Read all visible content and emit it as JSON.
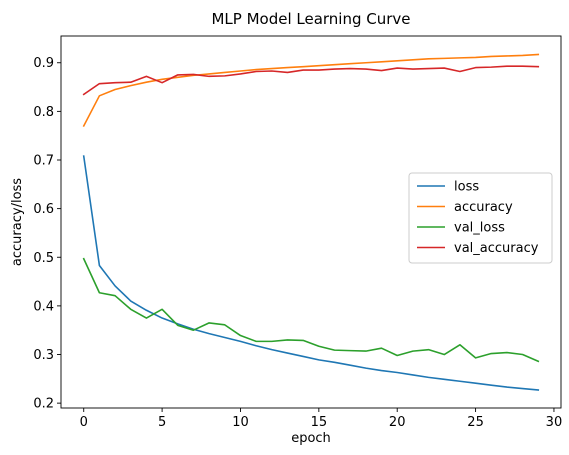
{
  "chart_data": {
    "type": "line",
    "title": "MLP Model Learning Curve",
    "xlabel": "epoch",
    "ylabel": "accuracy/loss",
    "xlim": [
      -1.45,
      30.45
    ],
    "ylim": [
      0.19,
      0.955
    ],
    "xticks": [
      0,
      5,
      10,
      15,
      20,
      25,
      30
    ],
    "yticks": [
      0.2,
      0.3,
      0.4,
      0.5,
      0.6,
      0.7,
      0.8,
      0.9
    ],
    "grid": false,
    "legend_placement": "center-right",
    "x": [
      0,
      1,
      2,
      3,
      4,
      5,
      6,
      7,
      8,
      9,
      10,
      11,
      12,
      13,
      14,
      15,
      16,
      17,
      18,
      19,
      20,
      21,
      22,
      23,
      24,
      25,
      26,
      27,
      28,
      29
    ],
    "series": [
      {
        "name": "loss",
        "color": "#1f77b4",
        "values": [
          0.708,
          0.483,
          0.441,
          0.41,
          0.391,
          0.375,
          0.363,
          0.352,
          0.343,
          0.335,
          0.327,
          0.318,
          0.31,
          0.303,
          0.296,
          0.289,
          0.284,
          0.278,
          0.272,
          0.267,
          0.263,
          0.258,
          0.253,
          0.249,
          0.245,
          0.241,
          0.237,
          0.233,
          0.23,
          0.227
        ]
      },
      {
        "name": "accuracy",
        "color": "#ff7f0e",
        "values": [
          0.77,
          0.832,
          0.845,
          0.853,
          0.86,
          0.866,
          0.87,
          0.874,
          0.877,
          0.88,
          0.883,
          0.886,
          0.888,
          0.89,
          0.892,
          0.894,
          0.896,
          0.898,
          0.9,
          0.902,
          0.904,
          0.906,
          0.908,
          0.909,
          0.91,
          0.911,
          0.913,
          0.914,
          0.915,
          0.917
        ]
      },
      {
        "name": "val_loss",
        "color": "#2ca02c",
        "values": [
          0.497,
          0.427,
          0.421,
          0.393,
          0.375,
          0.393,
          0.36,
          0.35,
          0.365,
          0.361,
          0.339,
          0.327,
          0.327,
          0.33,
          0.329,
          0.317,
          0.309,
          0.308,
          0.307,
          0.313,
          0.298,
          0.307,
          0.31,
          0.3,
          0.32,
          0.293,
          0.302,
          0.304,
          0.3,
          0.286
        ]
      },
      {
        "name": "val_accuracy",
        "color": "#d62728",
        "values": [
          0.835,
          0.857,
          0.859,
          0.86,
          0.872,
          0.859,
          0.875,
          0.876,
          0.872,
          0.873,
          0.877,
          0.882,
          0.883,
          0.88,
          0.885,
          0.885,
          0.887,
          0.888,
          0.887,
          0.884,
          0.889,
          0.887,
          0.888,
          0.889,
          0.882,
          0.89,
          0.891,
          0.893,
          0.893,
          0.892
        ]
      }
    ]
  }
}
